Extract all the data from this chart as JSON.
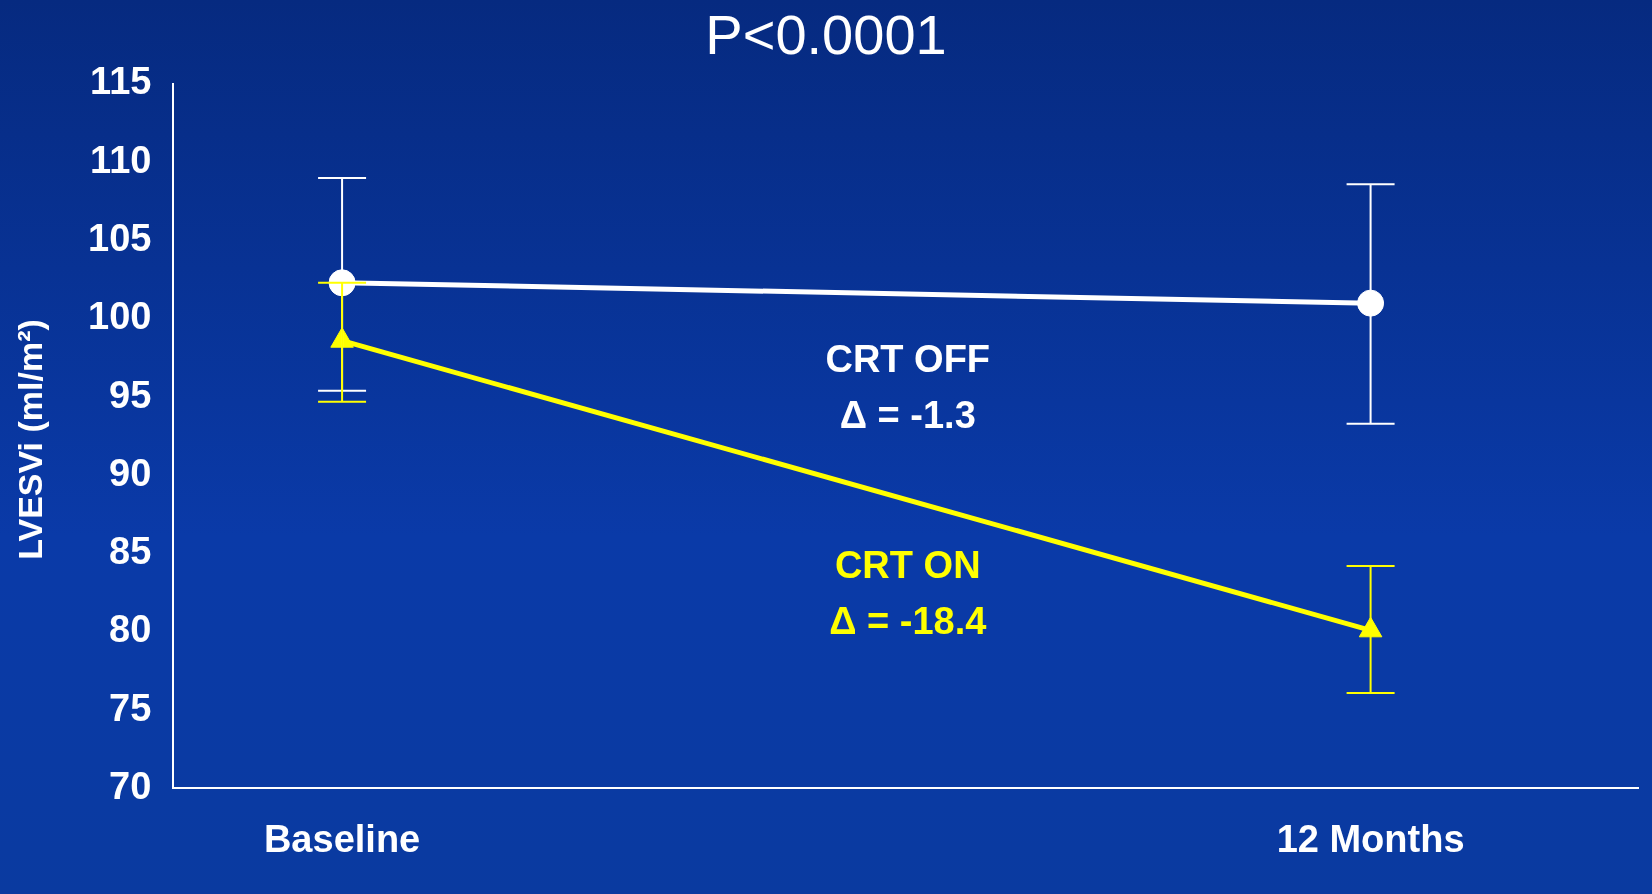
{
  "chart_data": {
    "type": "line",
    "title": "P<0.0001",
    "ylabel": "LVESVi (ml/m²)",
    "categories": [
      "Baseline",
      "12 Months"
    ],
    "ylim": [
      70,
      115
    ],
    "yticks": [
      70,
      75,
      80,
      85,
      90,
      95,
      100,
      105,
      110,
      115
    ],
    "grid": false,
    "legend": false,
    "series": [
      {
        "name": "CRT OFF",
        "color": "#ffffff",
        "marker": "circle",
        "values": [
          102.3,
          101.0
        ],
        "errors": [
          [
            95.4,
            109.0
          ],
          [
            93.3,
            108.6
          ]
        ]
      },
      {
        "name": "CRT ON",
        "color": "#ffff00",
        "marker": "triangle",
        "values": [
          98.6,
          80.1
        ],
        "errors": [
          [
            94.7,
            102.3
          ],
          [
            76.1,
            84.2
          ]
        ]
      }
    ],
    "annotations": [
      "Δ = -1.3",
      "Δ = -18.4"
    ]
  }
}
